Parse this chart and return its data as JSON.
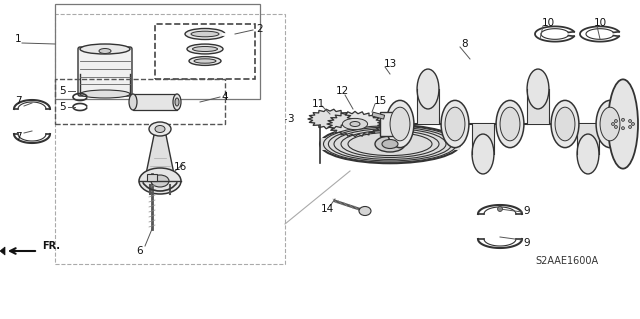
{
  "background_color": "#ffffff",
  "diagram_code": "S2AAE1600A",
  "line_color": "#333333",
  "label_color": "#111111",
  "label_fontsize": 7.5,
  "diagram_code_fontsize": 7
}
